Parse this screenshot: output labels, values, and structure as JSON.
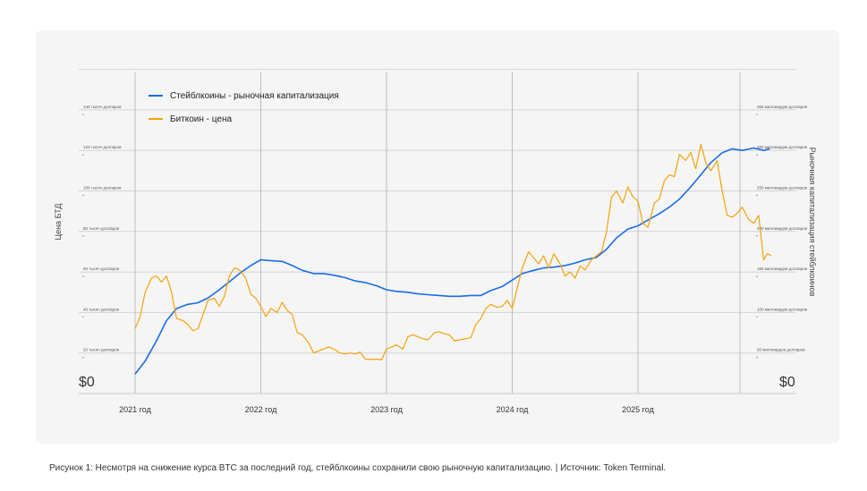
{
  "chart_data": {
    "type": "line",
    "x_labels": [
      "2021 год",
      "2022 год",
      "2023 год",
      "2024 год",
      "2025 год"
    ],
    "left_axis": {
      "title": "Цена БТД",
      "ticks": [
        "20 тысяч долларов",
        "40 тысяч долларов",
        "60 тысяч долларов",
        "80 тысяч долларов",
        "100 тысяч долларов",
        "120 тысяч долларов",
        "140 тысяч долларов"
      ],
      "zero_label": "$0",
      "ylim": [
        0,
        150000
      ]
    },
    "right_axis": {
      "title": "Рыночная капитализация стейблкоинов",
      "ticks": [
        "50 миллиардов долларов",
        "100 миллиардов долларов",
        "150 миллиардов долларов",
        "200 миллиардов долларов",
        "250 миллиардов долларов",
        "300 миллиардов долларов",
        "350 миллиардов долларов"
      ],
      "zero_label": "$0",
      "ylim": [
        0,
        350
      ]
    },
    "legend": {
      "placement": "top-left"
    },
    "series": [
      {
        "name": "Стейблкоины - рыночная капитализация",
        "color": "#1a6ce8",
        "axis": "right",
        "points": [
          [
            2021.0,
            24
          ],
          [
            2021.08,
            40
          ],
          [
            2021.17,
            65
          ],
          [
            2021.25,
            90
          ],
          [
            2021.33,
            105
          ],
          [
            2021.42,
            110
          ],
          [
            2021.5,
            112
          ],
          [
            2021.58,
            118
          ],
          [
            2021.67,
            128
          ],
          [
            2021.75,
            138
          ],
          [
            2021.83,
            148
          ],
          [
            2021.92,
            158
          ],
          [
            2022.0,
            165
          ],
          [
            2022.08,
            164
          ],
          [
            2022.17,
            163
          ],
          [
            2022.25,
            158
          ],
          [
            2022.33,
            152
          ],
          [
            2022.42,
            148
          ],
          [
            2022.5,
            148
          ],
          [
            2022.58,
            146
          ],
          [
            2022.67,
            143
          ],
          [
            2022.75,
            139
          ],
          [
            2022.83,
            137
          ],
          [
            2022.92,
            133
          ],
          [
            2023.0,
            128
          ],
          [
            2023.08,
            126
          ],
          [
            2023.17,
            125
          ],
          [
            2023.25,
            123
          ],
          [
            2023.33,
            122
          ],
          [
            2023.42,
            121
          ],
          [
            2023.5,
            120
          ],
          [
            2023.58,
            120
          ],
          [
            2023.67,
            121
          ],
          [
            2023.75,
            121
          ],
          [
            2023.83,
            127
          ],
          [
            2023.92,
            132
          ],
          [
            2024.0,
            140
          ],
          [
            2024.08,
            148
          ],
          [
            2024.17,
            152
          ],
          [
            2024.25,
            155
          ],
          [
            2024.33,
            156
          ],
          [
            2024.42,
            158
          ],
          [
            2024.5,
            161
          ],
          [
            2024.58,
            165
          ],
          [
            2024.67,
            168
          ],
          [
            2024.75,
            178
          ],
          [
            2024.83,
            192
          ],
          [
            2024.92,
            203
          ],
          [
            2025.0,
            207
          ],
          [
            2025.08,
            214
          ],
          [
            2025.17,
            222
          ],
          [
            2025.25,
            230
          ],
          [
            2025.33,
            240
          ],
          [
            2025.42,
            255
          ],
          [
            2025.5,
            270
          ],
          [
            2025.58,
            285
          ],
          [
            2025.67,
            297
          ],
          [
            2025.75,
            302
          ],
          [
            2025.83,
            300
          ],
          [
            2025.92,
            303
          ],
          [
            2026.0,
            300
          ],
          [
            2026.05,
            302
          ]
        ]
      },
      {
        "name": "Биткоин - цена",
        "color": "#f5a30c",
        "axis": "left",
        "points": [
          [
            2021.0,
            32000
          ],
          [
            2021.04,
            38000
          ],
          [
            2021.08,
            50000
          ],
          [
            2021.13,
            57000
          ],
          [
            2021.17,
            58000
          ],
          [
            2021.21,
            55000
          ],
          [
            2021.25,
            58000
          ],
          [
            2021.29,
            50000
          ],
          [
            2021.33,
            37000
          ],
          [
            2021.38,
            36000
          ],
          [
            2021.42,
            34000
          ],
          [
            2021.46,
            31000
          ],
          [
            2021.5,
            32000
          ],
          [
            2021.54,
            39000
          ],
          [
            2021.58,
            46000
          ],
          [
            2021.63,
            47000
          ],
          [
            2021.67,
            43000
          ],
          [
            2021.71,
            48000
          ],
          [
            2021.75,
            58000
          ],
          [
            2021.79,
            62000
          ],
          [
            2021.83,
            61000
          ],
          [
            2021.88,
            57000
          ],
          [
            2021.92,
            49000
          ],
          [
            2021.96,
            47000
          ],
          [
            2022.0,
            43000
          ],
          [
            2022.04,
            38000
          ],
          [
            2022.08,
            42000
          ],
          [
            2022.13,
            40000
          ],
          [
            2022.17,
            45000
          ],
          [
            2022.21,
            41000
          ],
          [
            2022.25,
            39000
          ],
          [
            2022.29,
            30000
          ],
          [
            2022.33,
            29000
          ],
          [
            2022.38,
            25000
          ],
          [
            2022.42,
            20000
          ],
          [
            2022.46,
            21000
          ],
          [
            2022.5,
            22000
          ],
          [
            2022.54,
            23000
          ],
          [
            2022.58,
            22000
          ],
          [
            2022.63,
            20000
          ],
          [
            2022.67,
            19500
          ],
          [
            2022.71,
            20000
          ],
          [
            2022.75,
            19500
          ],
          [
            2022.79,
            20500
          ],
          [
            2022.83,
            17000
          ],
          [
            2022.88,
            16800
          ],
          [
            2022.92,
            17000
          ],
          [
            2022.96,
            16600
          ],
          [
            2023.0,
            22000
          ],
          [
            2023.04,
            23000
          ],
          [
            2023.08,
            24000
          ],
          [
            2023.13,
            22000
          ],
          [
            2023.17,
            28000
          ],
          [
            2023.21,
            29000
          ],
          [
            2023.25,
            28000
          ],
          [
            2023.29,
            27000
          ],
          [
            2023.33,
            26500
          ],
          [
            2023.38,
            30000
          ],
          [
            2023.42,
            30500
          ],
          [
            2023.46,
            29500
          ],
          [
            2023.5,
            29000
          ],
          [
            2023.54,
            26000
          ],
          [
            2023.58,
            26500
          ],
          [
            2023.63,
            27000
          ],
          [
            2023.67,
            27500
          ],
          [
            2023.71,
            34000
          ],
          [
            2023.75,
            37000
          ],
          [
            2023.79,
            42000
          ],
          [
            2023.83,
            44000
          ],
          [
            2023.88,
            42500
          ],
          [
            2023.92,
            43000
          ],
          [
            2023.96,
            46000
          ],
          [
            2024.0,
            42000
          ],
          [
            2024.04,
            52000
          ],
          [
            2024.08,
            62000
          ],
          [
            2024.13,
            70000
          ],
          [
            2024.17,
            67000
          ],
          [
            2024.21,
            64000
          ],
          [
            2024.25,
            68000
          ],
          [
            2024.29,
            62000
          ],
          [
            2024.33,
            69000
          ],
          [
            2024.38,
            64000
          ],
          [
            2024.42,
            58000
          ],
          [
            2024.46,
            60000
          ],
          [
            2024.5,
            57000
          ],
          [
            2024.54,
            63000
          ],
          [
            2024.58,
            61000
          ],
          [
            2024.63,
            66000
          ],
          [
            2024.67,
            68000
          ],
          [
            2024.71,
            70000
          ],
          [
            2024.75,
            80000
          ],
          [
            2024.79,
            97000
          ],
          [
            2024.83,
            100000
          ],
          [
            2024.88,
            94000
          ],
          [
            2024.92,
            102000
          ],
          [
            2024.96,
            97000
          ],
          [
            2025.0,
            95000
          ],
          [
            2025.04,
            84000
          ],
          [
            2025.08,
            82000
          ],
          [
            2025.13,
            94000
          ],
          [
            2025.17,
            96000
          ],
          [
            2025.21,
            105000
          ],
          [
            2025.25,
            108000
          ],
          [
            2025.29,
            107000
          ],
          [
            2025.33,
            118000
          ],
          [
            2025.38,
            115000
          ],
          [
            2025.42,
            119000
          ],
          [
            2025.46,
            111000
          ],
          [
            2025.5,
            123000
          ],
          [
            2025.54,
            114000
          ],
          [
            2025.58,
            110000
          ],
          [
            2025.63,
            115000
          ],
          [
            2025.67,
            100000
          ],
          [
            2025.71,
            88000
          ],
          [
            2025.75,
            87000
          ],
          [
            2025.79,
            89000
          ],
          [
            2025.83,
            92000
          ],
          [
            2025.88,
            86000
          ],
          [
            2025.92,
            84000
          ],
          [
            2025.96,
            88000
          ],
          [
            2026.0,
            66000
          ],
          [
            2026.03,
            69000
          ],
          [
            2026.06,
            68000
          ]
        ]
      }
    ]
  },
  "caption": "Рисунок 1: Несмотря на снижение курса BTC за последний год, стейблкоины сохранили свою рыночную капитализацию. | Источник: Token Terminal."
}
